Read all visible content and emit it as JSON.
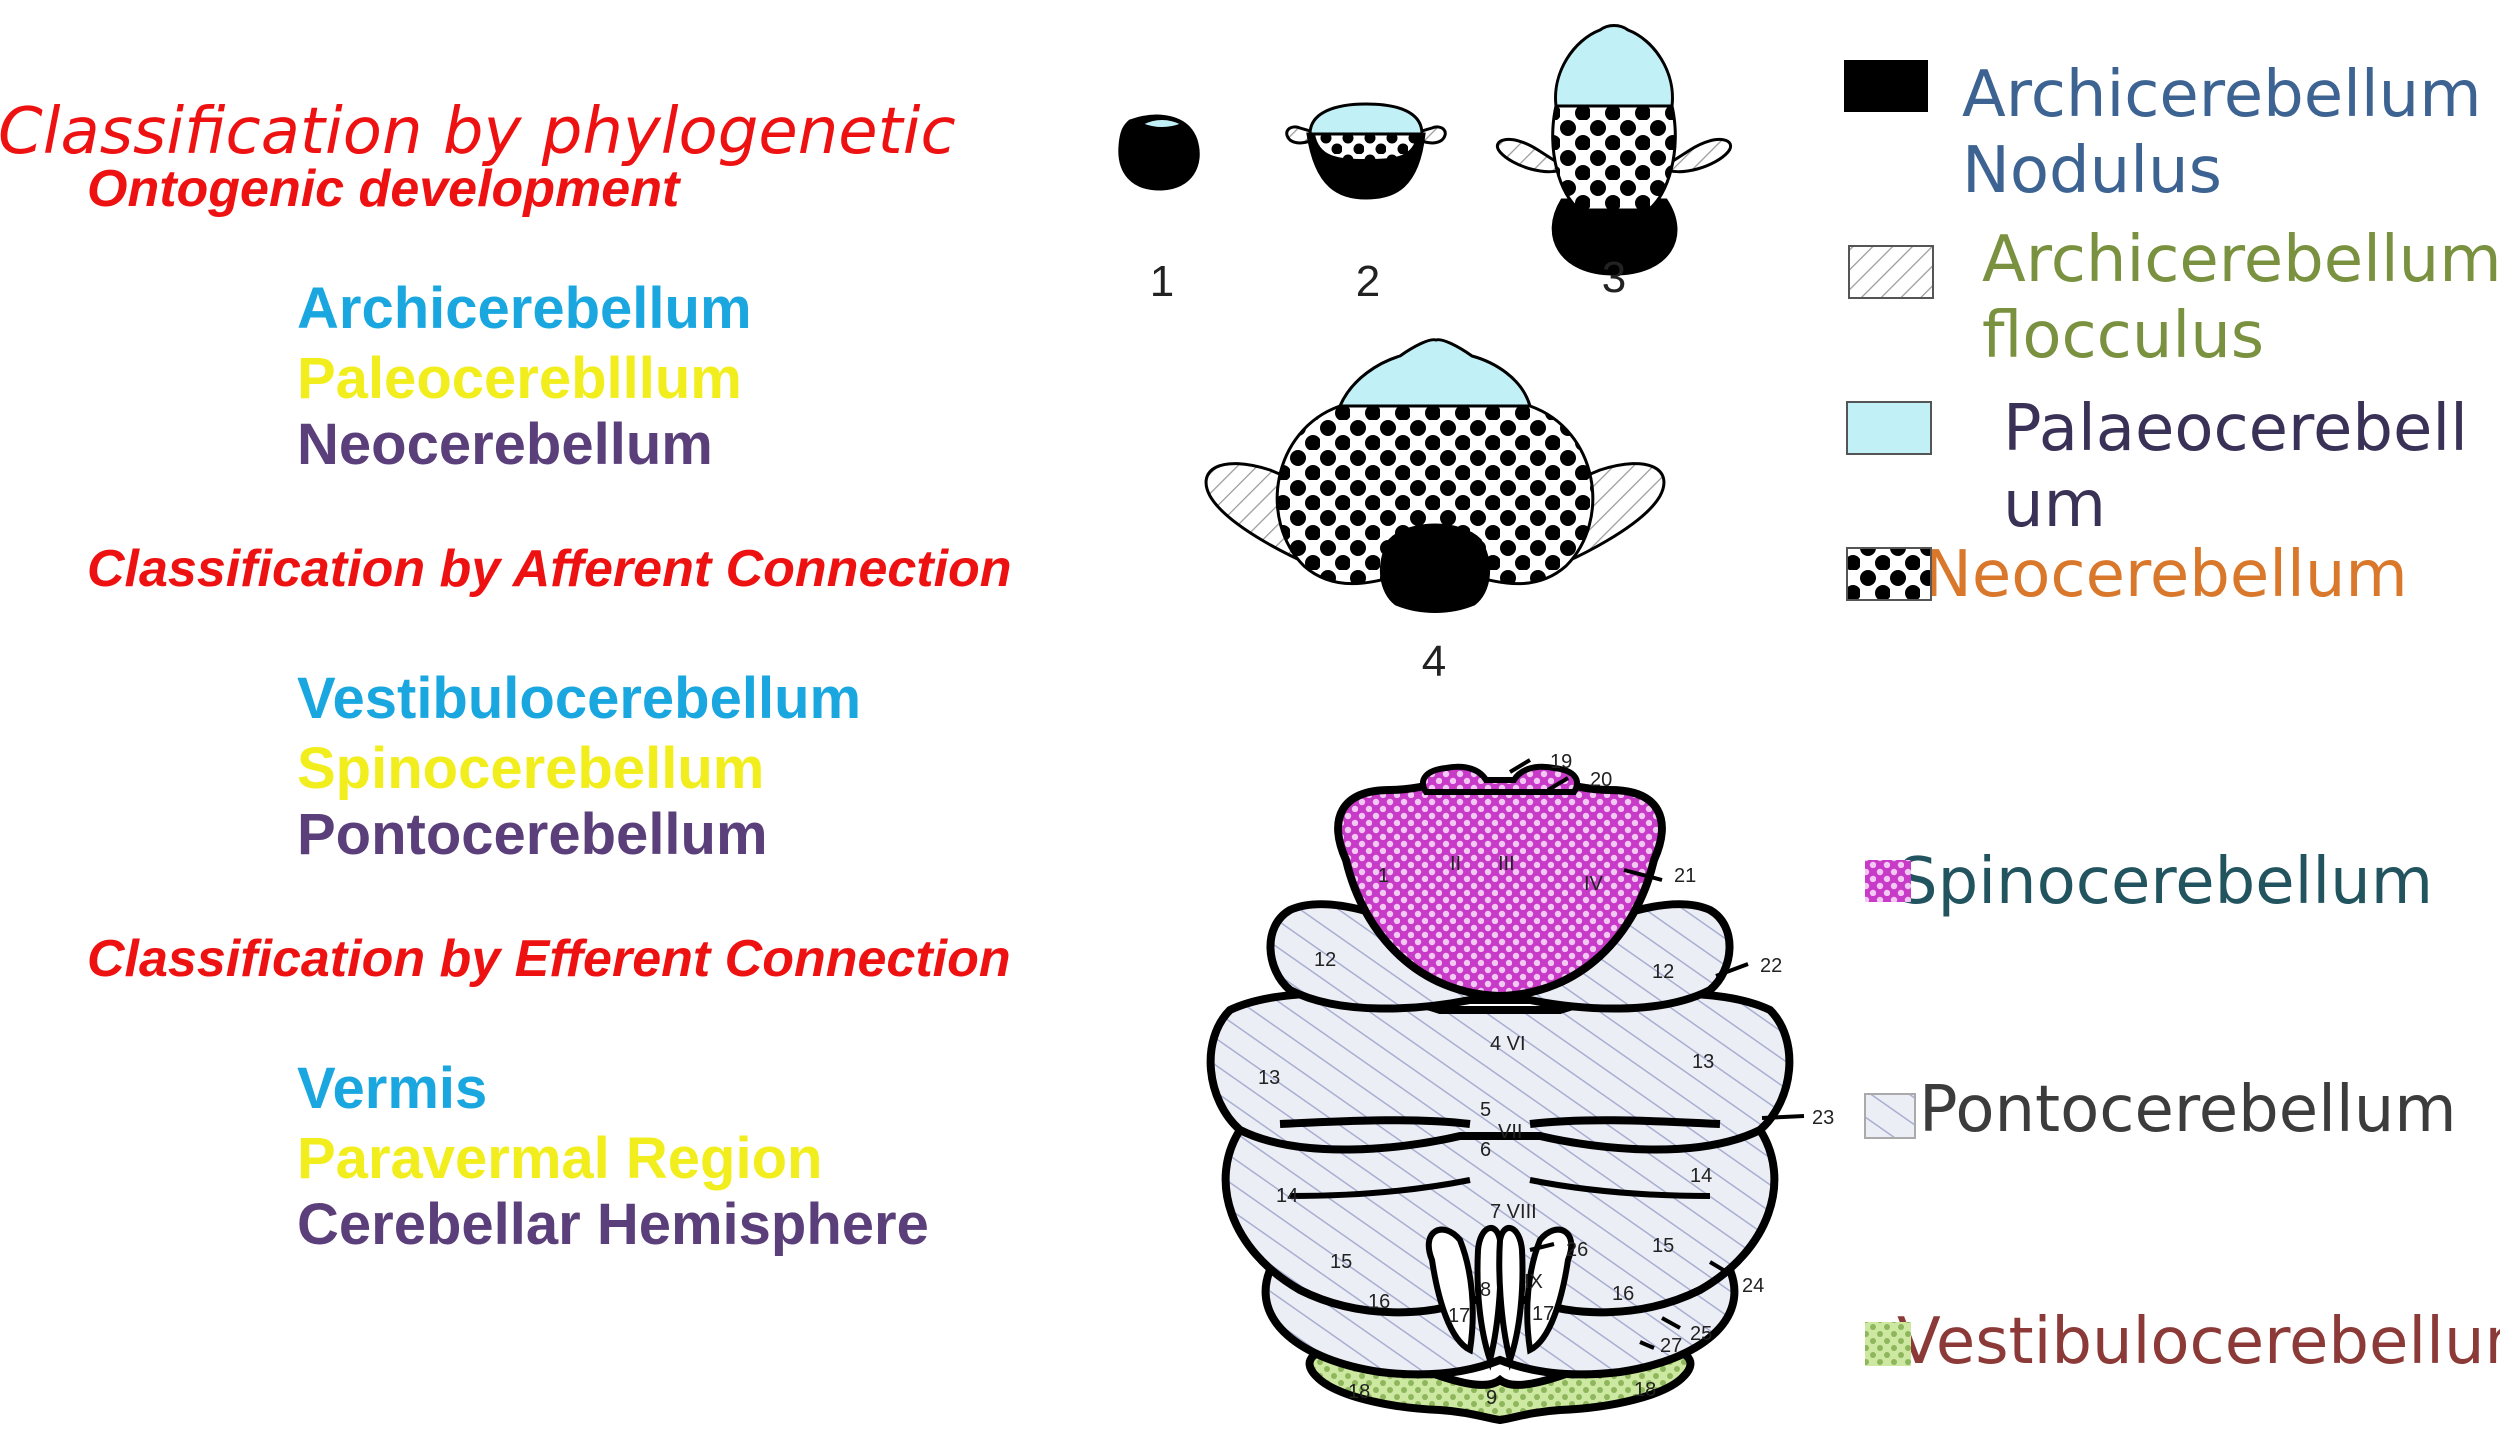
{
  "left": {
    "title": "Classification by phylogenetic",
    "subtitle": "Ontogenic development",
    "group1": [
      "Archicerebellum",
      "Paleocereblllum",
      "Neocerebellum"
    ],
    "header2": "Classification by Afferent Connection",
    "group2": [
      "Vestibulocerebellum",
      "Spinocerebellum",
      "Pontocerebellum"
    ],
    "header3": "Classification by Efferent Connection",
    "group3": [
      "Vermis",
      "Paravermal Region",
      "Cerebellar Hemisphere"
    ]
  },
  "stage_numbers": [
    "1",
    "2",
    "3",
    "4"
  ],
  "legend_top": [
    {
      "line1": "Archicerebellum",
      "line2": "Nodulus",
      "swatch": "solid-black"
    },
    {
      "line1": "Archicerebellum",
      "line2": "flocculus",
      "swatch": "hatched"
    },
    {
      "line1": "Palaeocerebell",
      "line2": "um",
      "swatch": "light-cyan"
    },
    {
      "line1": "Neocerebellum",
      "swatch": "black-dots"
    }
  ],
  "legend_bottom": [
    {
      "label": "Spinocerebellum",
      "swatch": "magenta-dots"
    },
    {
      "label": "Pontocerebellum",
      "swatch": "lavender-hatch"
    },
    {
      "label": "Vestibulocerebellum",
      "swatch": "green-dots"
    }
  ],
  "lobule_labels": {
    "callouts": [
      "19",
      "20",
      "21",
      "22",
      "23",
      "24",
      "25",
      "26",
      "27"
    ],
    "left_side": [
      "12",
      "13",
      "14",
      "15",
      "16",
      "17",
      "18"
    ],
    "right_side": [
      "12",
      "13",
      "14",
      "15",
      "16",
      "17",
      "18"
    ],
    "midline": [
      "1",
      "II",
      "III",
      "IV",
      "4 VI",
      "5",
      "VII",
      "6",
      "7 VIII",
      "8",
      "IX",
      "9"
    ]
  },
  "colors": {
    "red": "#ee1111",
    "cyan": "#1aa7e0",
    "yellow": "#f2ee1d",
    "purple": "#5b3f7a",
    "legend_blue": "#3c6391",
    "legend_olive": "#7a9140",
    "legend_navy": "#3a3157",
    "legend_orange": "#d9772b",
    "legend_teal": "#21545e",
    "legend_gray": "#3c3c3c",
    "legend_brown": "#8c3a38",
    "light_cyan": "#c1f1f7",
    "magenta": "#c83ac8",
    "pale_green": "#cde8a0"
  }
}
